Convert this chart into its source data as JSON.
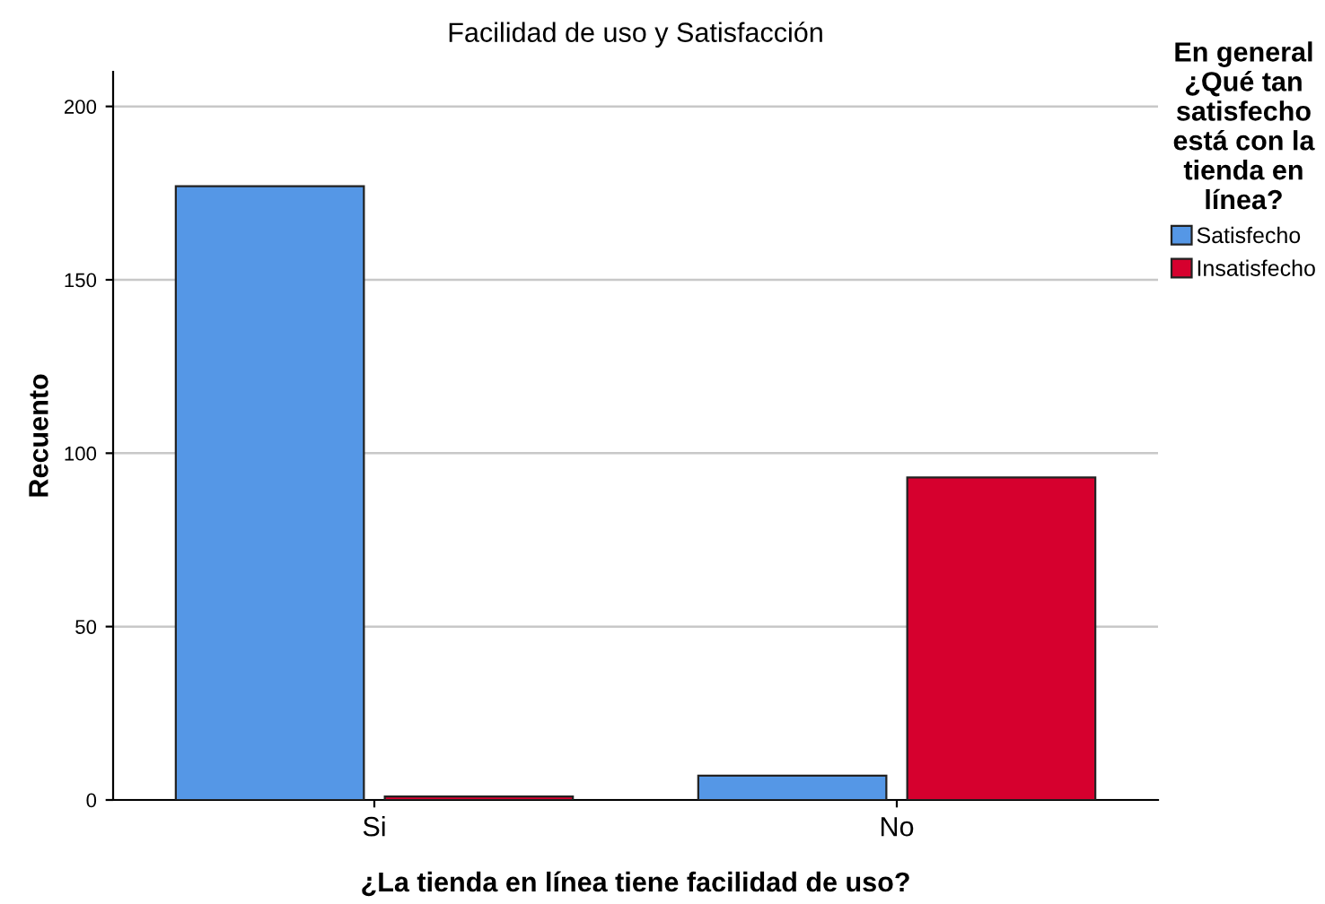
{
  "chart_data": {
    "type": "bar",
    "title": "Facilidad de uso y Satisfacción",
    "xlabel": "¿La tienda en línea tiene facilidad de uso?",
    "ylabel": "Recuento",
    "legend_title": "En general\n¿Qué tan\nsatisfecho\nestá con la\ntienda en\nlínea?",
    "categories": [
      "Si",
      "No"
    ],
    "series": [
      {
        "name": "Satisfecho",
        "color": "#5597e6",
        "values": [
          177,
          7
        ]
      },
      {
        "name": "Insatisfecho",
        "color": "#d6002e",
        "values": [
          1,
          93
        ]
      }
    ],
    "ylim": [
      0,
      210
    ],
    "yticks": [
      0,
      50,
      100,
      150,
      200
    ],
    "grid": "y",
    "legend": "top right"
  }
}
